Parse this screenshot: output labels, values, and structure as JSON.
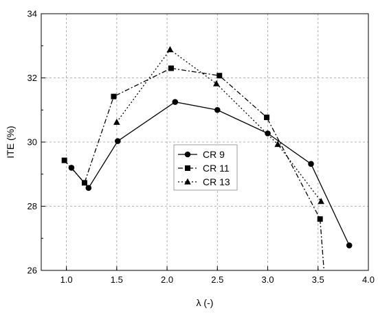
{
  "chart_data": {
    "type": "line",
    "xlabel": "λ (-)",
    "ylabel": "ITE (%)",
    "xlim": [
      0.75,
      4.0
    ],
    "ylim": [
      26,
      34
    ],
    "xticks": [
      "1.0",
      "1.5",
      "2.0",
      "2.5",
      "3.0",
      "3.5",
      "4.0"
    ],
    "yticks": [
      "26",
      "28",
      "30",
      "32",
      "34"
    ],
    "grid": true,
    "legend_position": "center",
    "series": [
      {
        "name": "CR 9",
        "marker": "circle",
        "dash": "solid",
        "x": [
          1.05,
          1.22,
          1.51,
          2.08,
          2.5,
          3.0,
          3.43,
          3.81
        ],
        "y": [
          29.2,
          28.57,
          30.03,
          31.25,
          31.0,
          30.27,
          29.32,
          26.78
        ]
      },
      {
        "name": "CR 11",
        "marker": "square",
        "dash": "dashdot",
        "x": [
          0.98,
          1.18,
          1.47,
          2.04,
          2.52,
          2.99,
          3.52,
          3.56
        ],
        "y": [
          29.43,
          28.73,
          31.42,
          32.3,
          32.07,
          30.77,
          27.6,
          25.95
        ]
      },
      {
        "name": "CR 13",
        "marker": "triangle",
        "dash": "dotted",
        "x": [
          1.5,
          2.03,
          2.49,
          3.1,
          3.53
        ],
        "y": [
          30.62,
          32.88,
          31.82,
          29.93,
          28.15
        ]
      }
    ]
  }
}
